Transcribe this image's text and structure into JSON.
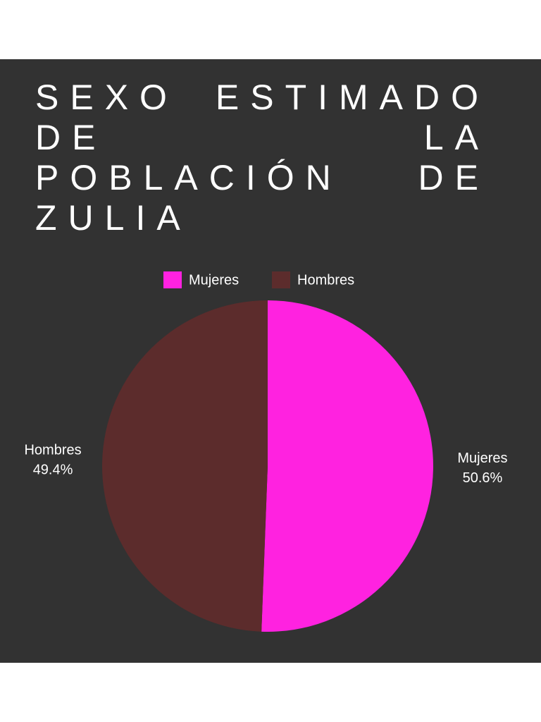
{
  "chart_data": {
    "type": "pie",
    "title": "SEXO ESTIMADO DE LA POBLACIÓN DE ZULIA",
    "categories": [
      "Mujeres",
      "Hombres"
    ],
    "values": [
      50.6,
      49.4
    ],
    "value_labels": [
      "50.6%",
      "49.4%"
    ],
    "colors": [
      "#ff22e0",
      "#5c2c2c"
    ],
    "legend": "top"
  }
}
